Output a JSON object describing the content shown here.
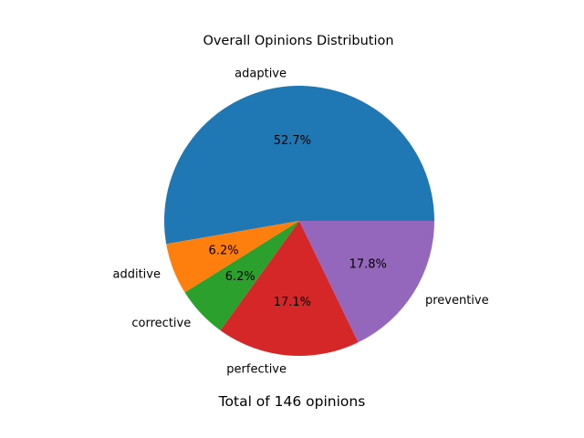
{
  "chart_data": {
    "type": "pie",
    "title": "Overall Opinions Distribution",
    "xlabel": "Total of 146 opinions",
    "categories": [
      "adaptive",
      "additive",
      "corrective",
      "perfective",
      "preventive"
    ],
    "values": [
      77,
      9,
      9,
      25,
      26
    ],
    "percent_labels": [
      "52.7%",
      "6.2%",
      "6.2%",
      "17.1%",
      "17.8%"
    ],
    "colors": [
      "#1f77b4",
      "#ff7f0e",
      "#2ca02c",
      "#d62728",
      "#9467bd"
    ],
    "start_angle_deg": 0,
    "direction": "counterclockwise",
    "legend": false
  }
}
